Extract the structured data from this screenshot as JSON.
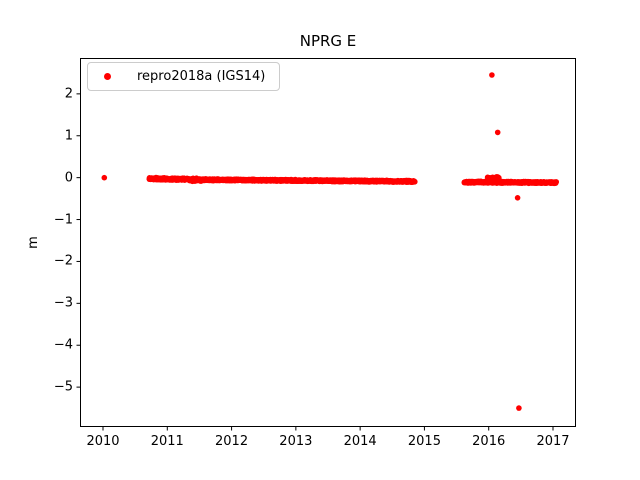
{
  "window": {
    "background": "#ffffff"
  },
  "chart_data": {
    "type": "scatter",
    "title": "NPRG E",
    "xlabel": "",
    "ylabel": "m",
    "xlim": [
      2009.642,
      2017.358
    ],
    "ylim": [
      -5.952,
      2.868
    ],
    "xticks": [
      2010,
      2011,
      2012,
      2013,
      2014,
      2015,
      2016,
      2017
    ],
    "xtick_labels": [
      "2010",
      "2011",
      "2012",
      "2013",
      "2014",
      "2015",
      "2016",
      "2017"
    ],
    "yticks": [
      2,
      1,
      0,
      -1,
      -2,
      -3,
      -4,
      -5
    ],
    "ytick_labels": [
      "2",
      "1",
      "0",
      "−1",
      "−2",
      "−3",
      "−4",
      "−5"
    ],
    "grid": false,
    "legend": {
      "position": "upper-left",
      "label": "repro2018a (IGS14)"
    },
    "series": [
      {
        "name": "repro2018a (IGS14)",
        "color": "#ff0000",
        "marker": "circle",
        "marker_radius_px": 2.8,
        "dense_segments": [
          {
            "x_start": 2010.72,
            "x_end": 2011.35,
            "y_start": -0.025,
            "y_end": -0.04,
            "y_spread": 0.03,
            "points": 230
          },
          {
            "x_start": 2011.35,
            "x_end": 2011.55,
            "y_start": -0.05,
            "y_end": -0.05,
            "y_spread": 0.04,
            "points": 70
          },
          {
            "x_start": 2011.55,
            "x_end": 2014.85,
            "y_start": -0.05,
            "y_end": -0.09,
            "y_spread": 0.022,
            "points": 1150
          },
          {
            "x_start": 2015.62,
            "x_end": 2017.05,
            "y_start": -0.105,
            "y_end": -0.12,
            "y_spread": 0.022,
            "points": 500
          },
          {
            "x_start": 2015.98,
            "x_end": 2016.16,
            "y_start": -0.03,
            "y_end": -0.03,
            "y_spread": 0.055,
            "points": 70
          }
        ],
        "outlier_points": [
          {
            "x": 2010.02,
            "y": 0.0
          },
          {
            "x": 2016.05,
            "y": 2.45
          },
          {
            "x": 2016.14,
            "y": 1.08
          },
          {
            "x": 2016.45,
            "y": -0.48
          },
          {
            "x": 2016.47,
            "y": -5.5
          }
        ]
      }
    ]
  }
}
